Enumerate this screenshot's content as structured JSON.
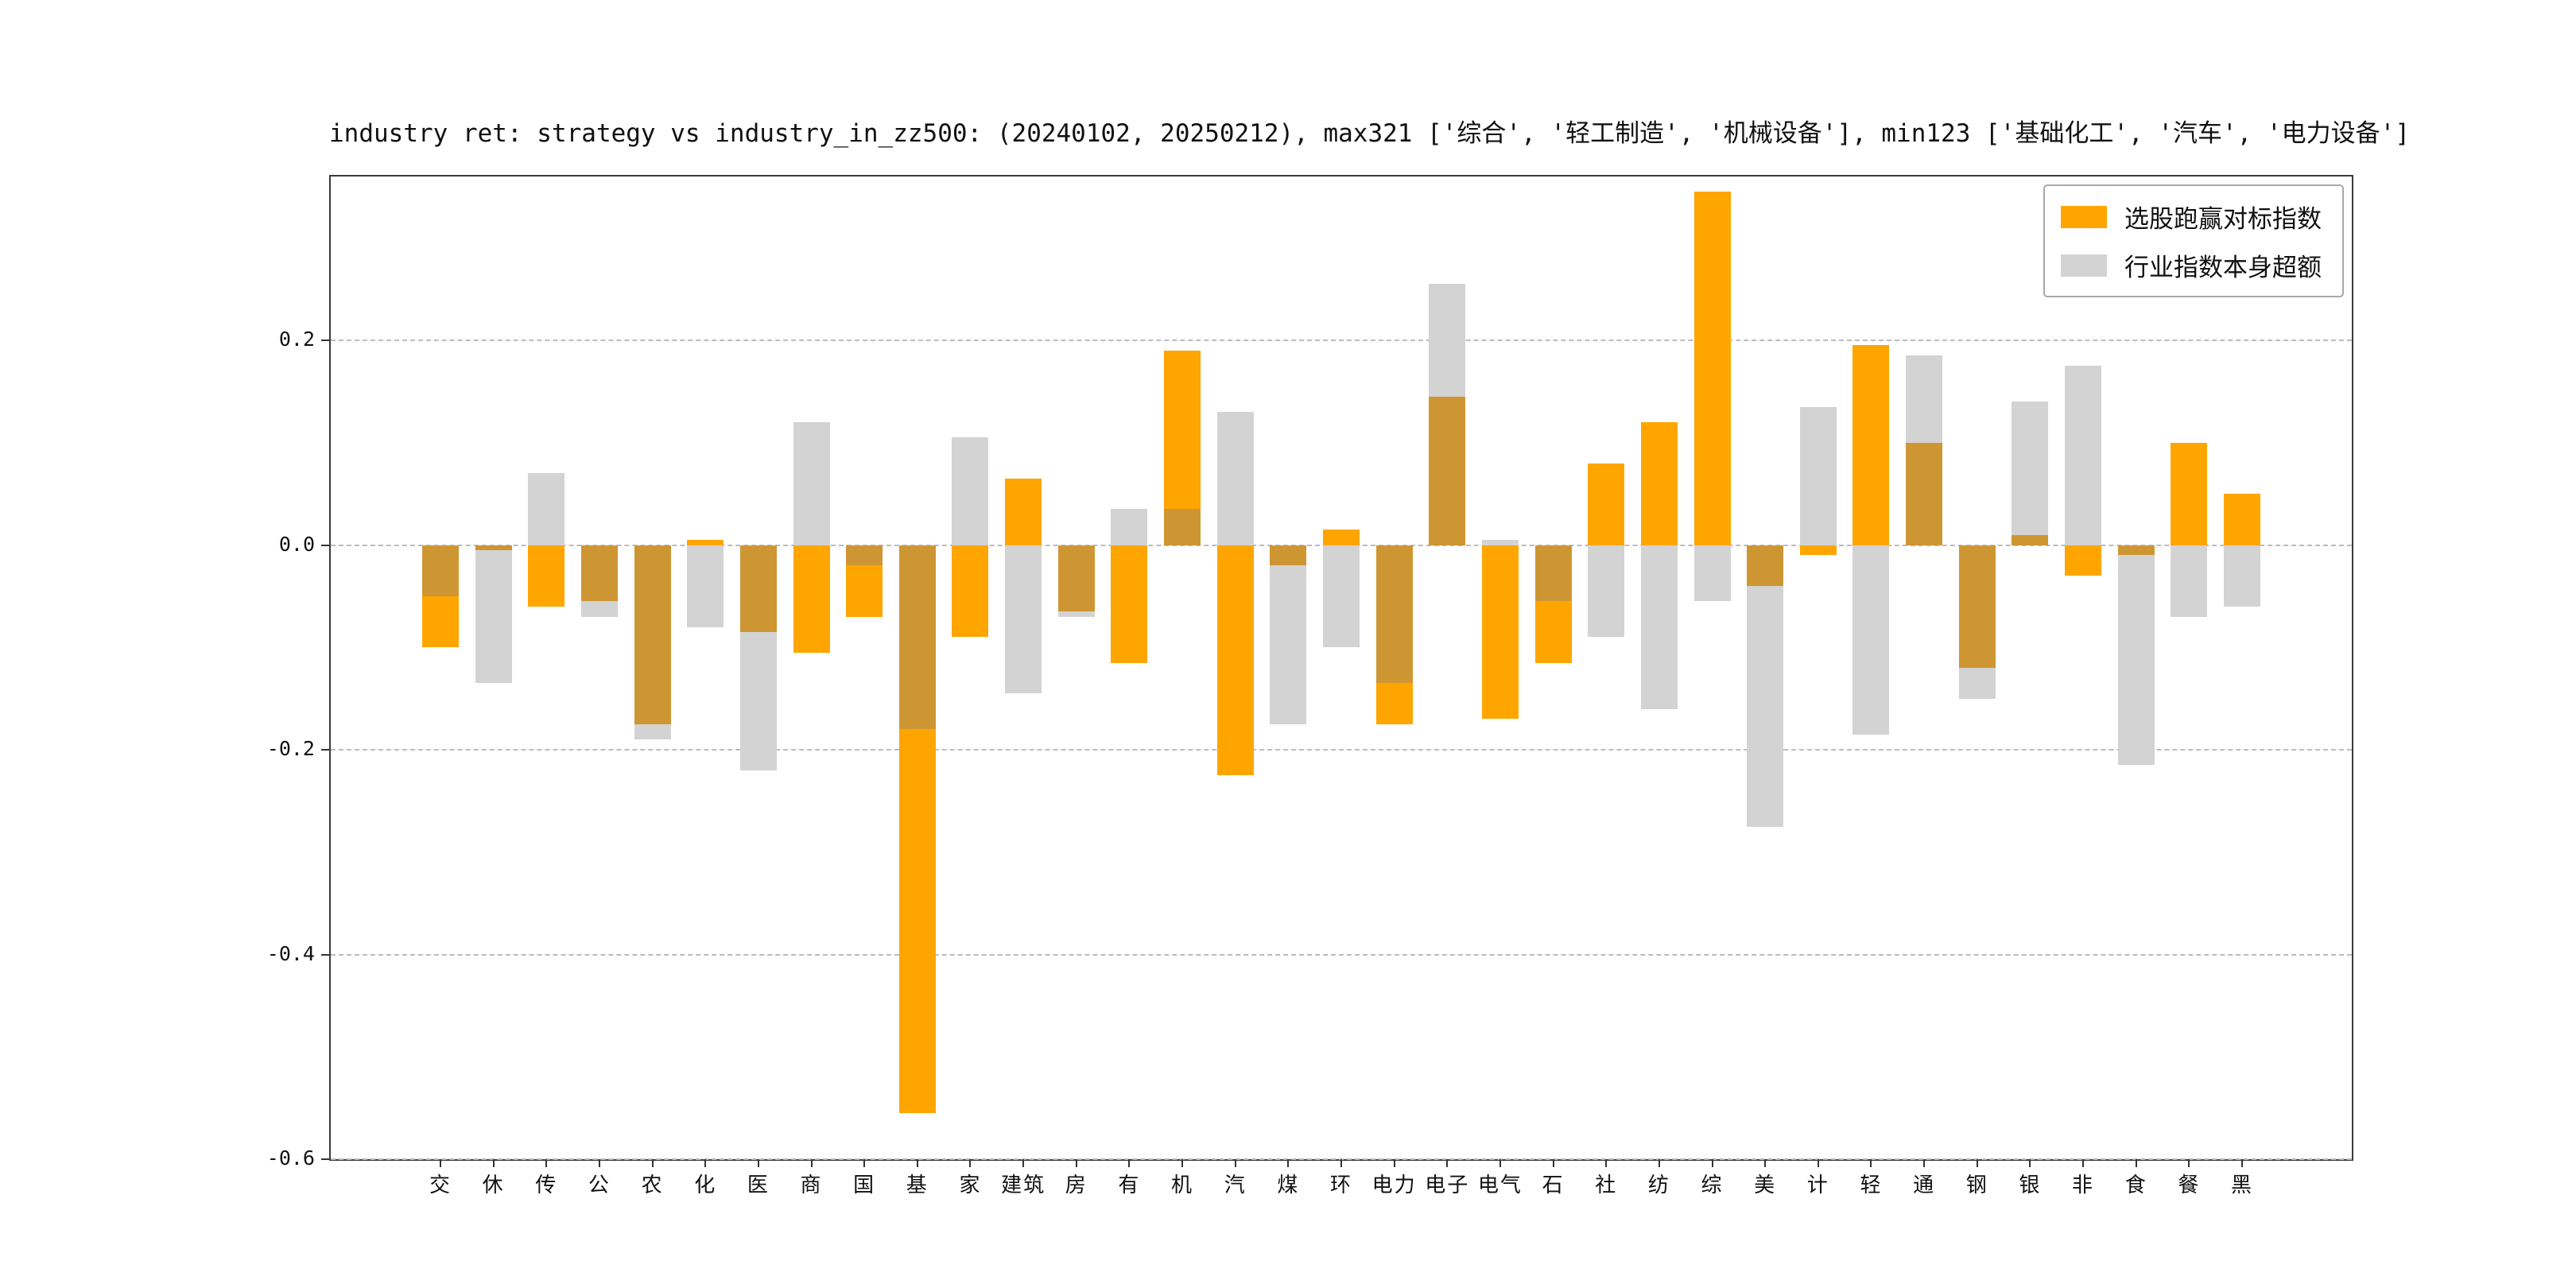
{
  "title": "industry ret: strategy vs industry_in_zz500: (20240102, 20250212), max321 ['综合', '轻工制造', '机械设备'], min123 ['基础化工', '汽车', '电力设备']",
  "legend": {
    "items": [
      {
        "label": "选股跑赢对标指数"
      },
      {
        "label": "行业指数本身超额"
      }
    ]
  },
  "chart_data": {
    "type": "bar",
    "title": "industry ret: strategy vs industry_in_zz500: (20240102, 20250212), max321 ['综合', '轻工制造', '机械设备'], min123 ['基础化工', '汽车', '电力设备']",
    "categories": [
      "交",
      "休",
      "传",
      "公",
      "农",
      "化",
      "医",
      "商",
      "国",
      "基",
      "家",
      "建筑",
      "房",
      "有",
      "机",
      "汽",
      "煤",
      "环",
      "电力",
      "电子",
      "电气",
      "石",
      "社",
      "纺",
      "综",
      "美",
      "计",
      "轻",
      "通",
      "钢",
      "银",
      "非",
      "食",
      "餐",
      "黑"
    ],
    "series": [
      {
        "name": "选股跑赢对标指数",
        "color": "#FFA500",
        "values": [
          -0.1,
          -0.005,
          -0.06,
          -0.055,
          -0.175,
          0.005,
          -0.085,
          -0.105,
          -0.07,
          -0.555,
          -0.09,
          0.065,
          -0.065,
          -0.115,
          0.19,
          -0.225,
          -0.02,
          0.015,
          -0.175,
          0.145,
          -0.17,
          -0.115,
          0.08,
          0.12,
          0.345,
          -0.04,
          -0.01,
          0.195,
          0.1,
          -0.12,
          0.01,
          -0.03,
          -0.01,
          0.1,
          0.05
        ]
      },
      {
        "name": "行业指数本身超额",
        "color": "#D3D3D3",
        "values": [
          -0.05,
          -0.135,
          0.07,
          -0.07,
          -0.19,
          -0.08,
          -0.22,
          0.12,
          -0.02,
          -0.18,
          0.105,
          -0.145,
          -0.07,
          0.035,
          0.035,
          0.13,
          -0.175,
          -0.1,
          -0.135,
          0.255,
          0.005,
          -0.055,
          -0.09,
          -0.16,
          -0.055,
          -0.275,
          0.135,
          -0.185,
          0.185,
          -0.15,
          0.14,
          0.175,
          -0.215,
          -0.07,
          -0.06
        ]
      }
    ],
    "overlap_color": "#CE9633",
    "ylim": [
      -0.6,
      0.36
    ],
    "yticks": [
      {
        "label": "0.2",
        "value": 0.2
      },
      {
        "label": "0.0",
        "value": 0.0
      },
      {
        "label": "-0.2",
        "value": -0.2
      },
      {
        "label": "-0.4",
        "value": -0.4
      },
      {
        "label": "-0.6",
        "value": -0.6
      }
    ],
    "grid": "dashed",
    "legend_position": "upper right"
  }
}
